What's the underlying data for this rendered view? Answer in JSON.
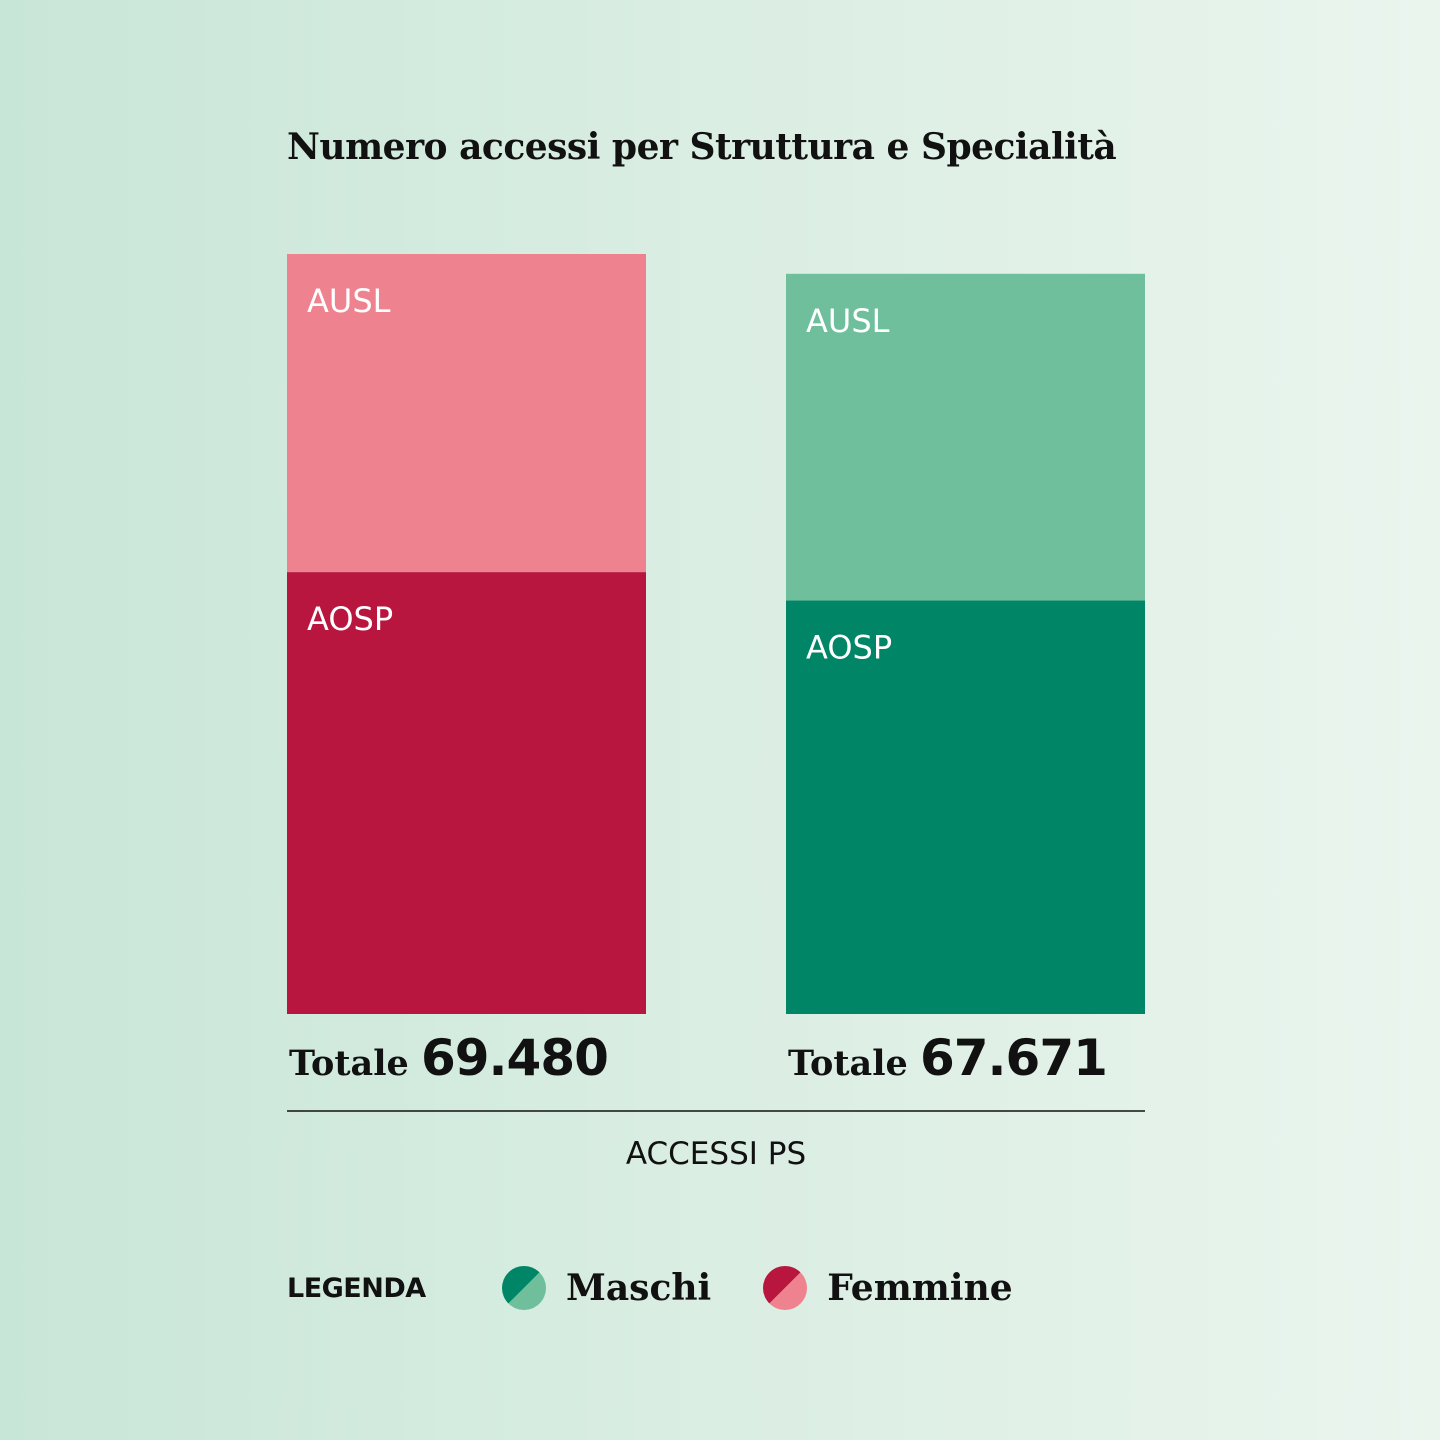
{
  "chart_data": {
    "type": "bar",
    "stacked": true,
    "title": "Numero accessi per Struttura e Specialità",
    "xlabel": "ACCESSI PS",
    "total_prefix": "Totale",
    "bars": [
      {
        "key": "femmine",
        "total": 69480,
        "total_label": "69.480",
        "segments": [
          {
            "name": "AOSP",
            "value": 40400,
            "color": "#b9163f"
          },
          {
            "name": "AUSL",
            "value": 29080,
            "color": "#ee828e"
          }
        ]
      },
      {
        "key": "maschi",
        "total": 67671,
        "total_label": "67.671",
        "segments": [
          {
            "name": "AOSP",
            "value": 37800,
            "color": "#008566"
          },
          {
            "name": "AUSL",
            "value": 29871,
            "color": "#6fbf9c"
          }
        ]
      }
    ],
    "ylim": [
      0,
      69480
    ],
    "grid": false
  },
  "legend": {
    "title": "LEGENDA",
    "items": [
      {
        "label": "Maschi",
        "color_dark": "#008566",
        "color_light": "#6fbf9c"
      },
      {
        "label": "Femmine",
        "color_dark": "#b9163f",
        "color_light": "#ee828e"
      }
    ]
  },
  "colors": {
    "axis": "#111111",
    "segment_text": "#ffffff"
  }
}
